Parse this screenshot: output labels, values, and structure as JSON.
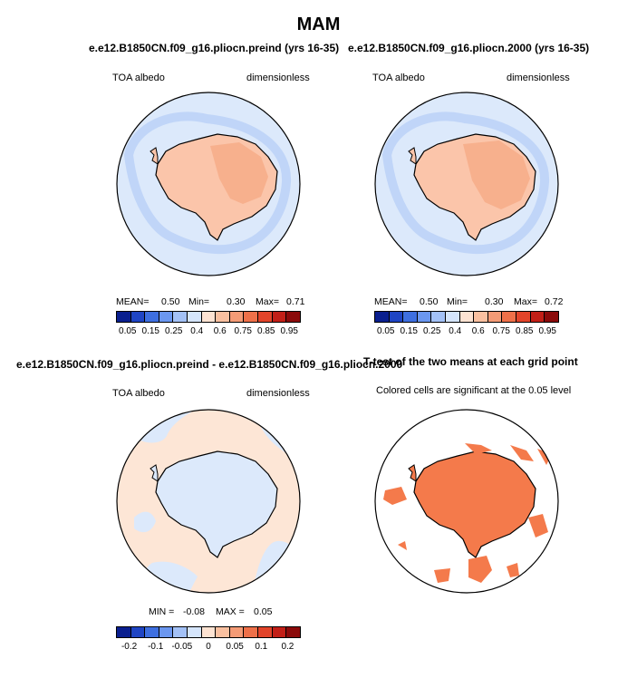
{
  "figure": {
    "title": "MAM"
  },
  "panels": {
    "top_left": {
      "title": "e.e12.B1850CN.f09_g16.pliocn.preind (yrs 16-35)",
      "variable": "TOA albedo",
      "units": "dimensionless",
      "mean_label": "MEAN=",
      "mean_value": "0.50",
      "min_label": "Min=",
      "min_value": "0.30",
      "max_label": "Max=",
      "max_value": "0.71"
    },
    "top_right": {
      "title": "e.e12.B1850CN.f09_g16.pliocn.2000 (yrs 16-35)",
      "variable": "TOA albedo",
      "units": "dimensionless",
      "mean_label": "MEAN=",
      "mean_value": "0.50",
      "min_label": "Min=",
      "min_value": "0.30",
      "max_label": "Max=",
      "max_value": "0.72"
    },
    "bottom_left": {
      "title": "e.e12.B1850CN.f09_g16.pliocn.preind - e.e12.B1850CN.f09_g16.pliocn.2000",
      "variable": "TOA albedo",
      "units": "dimensionless",
      "min_label": "MIN =",
      "min_value": "-0.08",
      "max_label": "MAX =",
      "max_value": "0.05"
    },
    "bottom_right": {
      "title": "T-test of the two means at each grid point",
      "subtitle": "Colored cells are significant at the 0.05 level"
    }
  },
  "colorbars": {
    "absolute": {
      "labels": [
        "0.05",
        "0.15",
        "0.25",
        "0.4",
        "0.6",
        "0.75",
        "0.85",
        "0.95"
      ],
      "colors": [
        "#0a1f8f",
        "#1f45c4",
        "#3e6fe0",
        "#6b97f0",
        "#a3c1f6",
        "#d5e5fb",
        "#fde3d2",
        "#f9c0a0",
        "#f49b76",
        "#ee7049",
        "#e2442a",
        "#c21f17",
        "#8b0a0a"
      ]
    },
    "difference": {
      "labels": [
        "-0.2",
        "-0.1",
        "-0.05",
        "0",
        "0.05",
        "0.1",
        "0.2"
      ],
      "colors": [
        "#0a1f8f",
        "#1f45c4",
        "#3e6fe0",
        "#6b97f0",
        "#a3c1f6",
        "#d5e5fb",
        "#fde3d2",
        "#f9c0a0",
        "#f49b76",
        "#ee7049",
        "#e2442a",
        "#c21f17",
        "#8b0a0a"
      ]
    }
  },
  "map_colors": {
    "ocean": "#dce9fb",
    "ocean_edge": "#bcd3f7",
    "land_low": "#fbc5aa",
    "land_high": "#f7b08d",
    "diff_positive": "#fde6d6",
    "diff_negative": "#dce9fb",
    "significant": "#f47a4b"
  }
}
